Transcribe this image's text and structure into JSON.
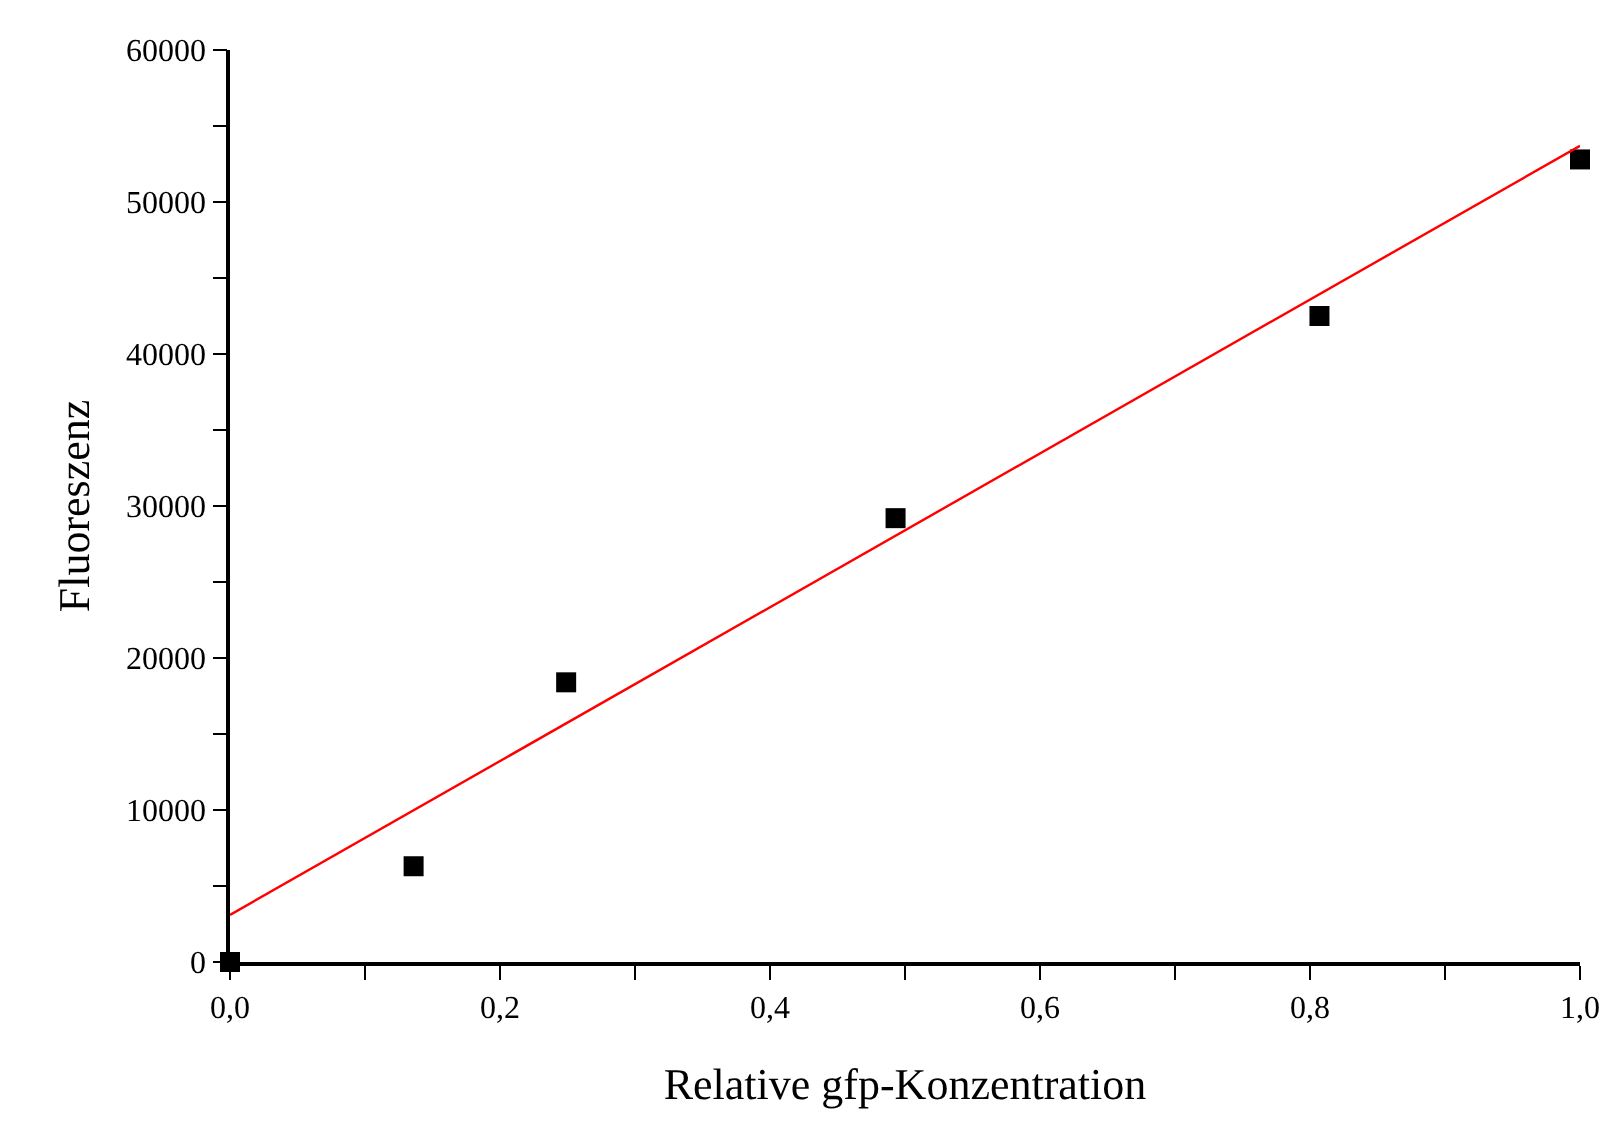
{
  "chart_data": {
    "type": "scatter",
    "xlabel": "Relative gfp-Konzentration",
    "ylabel": "Fluoreszenz",
    "series": [
      {
        "color": "#000000",
        "marker": "square",
        "x": [
          0,
          0.136,
          0.249,
          0.493,
          0.807,
          1.0
        ],
        "values": [
          0,
          6300,
          18400,
          29200,
          42500,
          52800
        ]
      },
      {
        "type": "line",
        "color": "#ff0000",
        "marker": "none",
        "x": [
          0,
          1.0
        ],
        "values": [
          3100,
          53700
        ]
      }
    ],
    "xlim": [
      0,
      1.0
    ],
    "ylim": [
      0,
      60000
    ],
    "xticks": [
      {
        "value": 0,
        "label": "0,0"
      },
      {
        "value": 0.1,
        "label": null
      },
      {
        "value": 0.2,
        "label": "0,2"
      },
      {
        "value": 0.3,
        "label": null
      },
      {
        "value": 0.4,
        "label": "0,4"
      },
      {
        "value": 0.5,
        "label": null
      },
      {
        "value": 0.6,
        "label": "0,6"
      },
      {
        "value": 0.7,
        "label": null
      },
      {
        "value": 0.8,
        "label": "0,8"
      },
      {
        "value": 0.9,
        "label": null
      },
      {
        "value": 1.0,
        "label": "1,0"
      }
    ],
    "yticks": [
      0,
      {
        "value": 5000,
        "label": null
      },
      10000,
      {
        "value": 15000,
        "label": null
      },
      20000,
      {
        "value": 25000,
        "label": null
      },
      30000,
      {
        "value": 35000,
        "label": null
      },
      40000,
      {
        "value": 45000,
        "label": null
      },
      50000,
      {
        "value": 55000,
        "label": null
      },
      60000
    ]
  }
}
